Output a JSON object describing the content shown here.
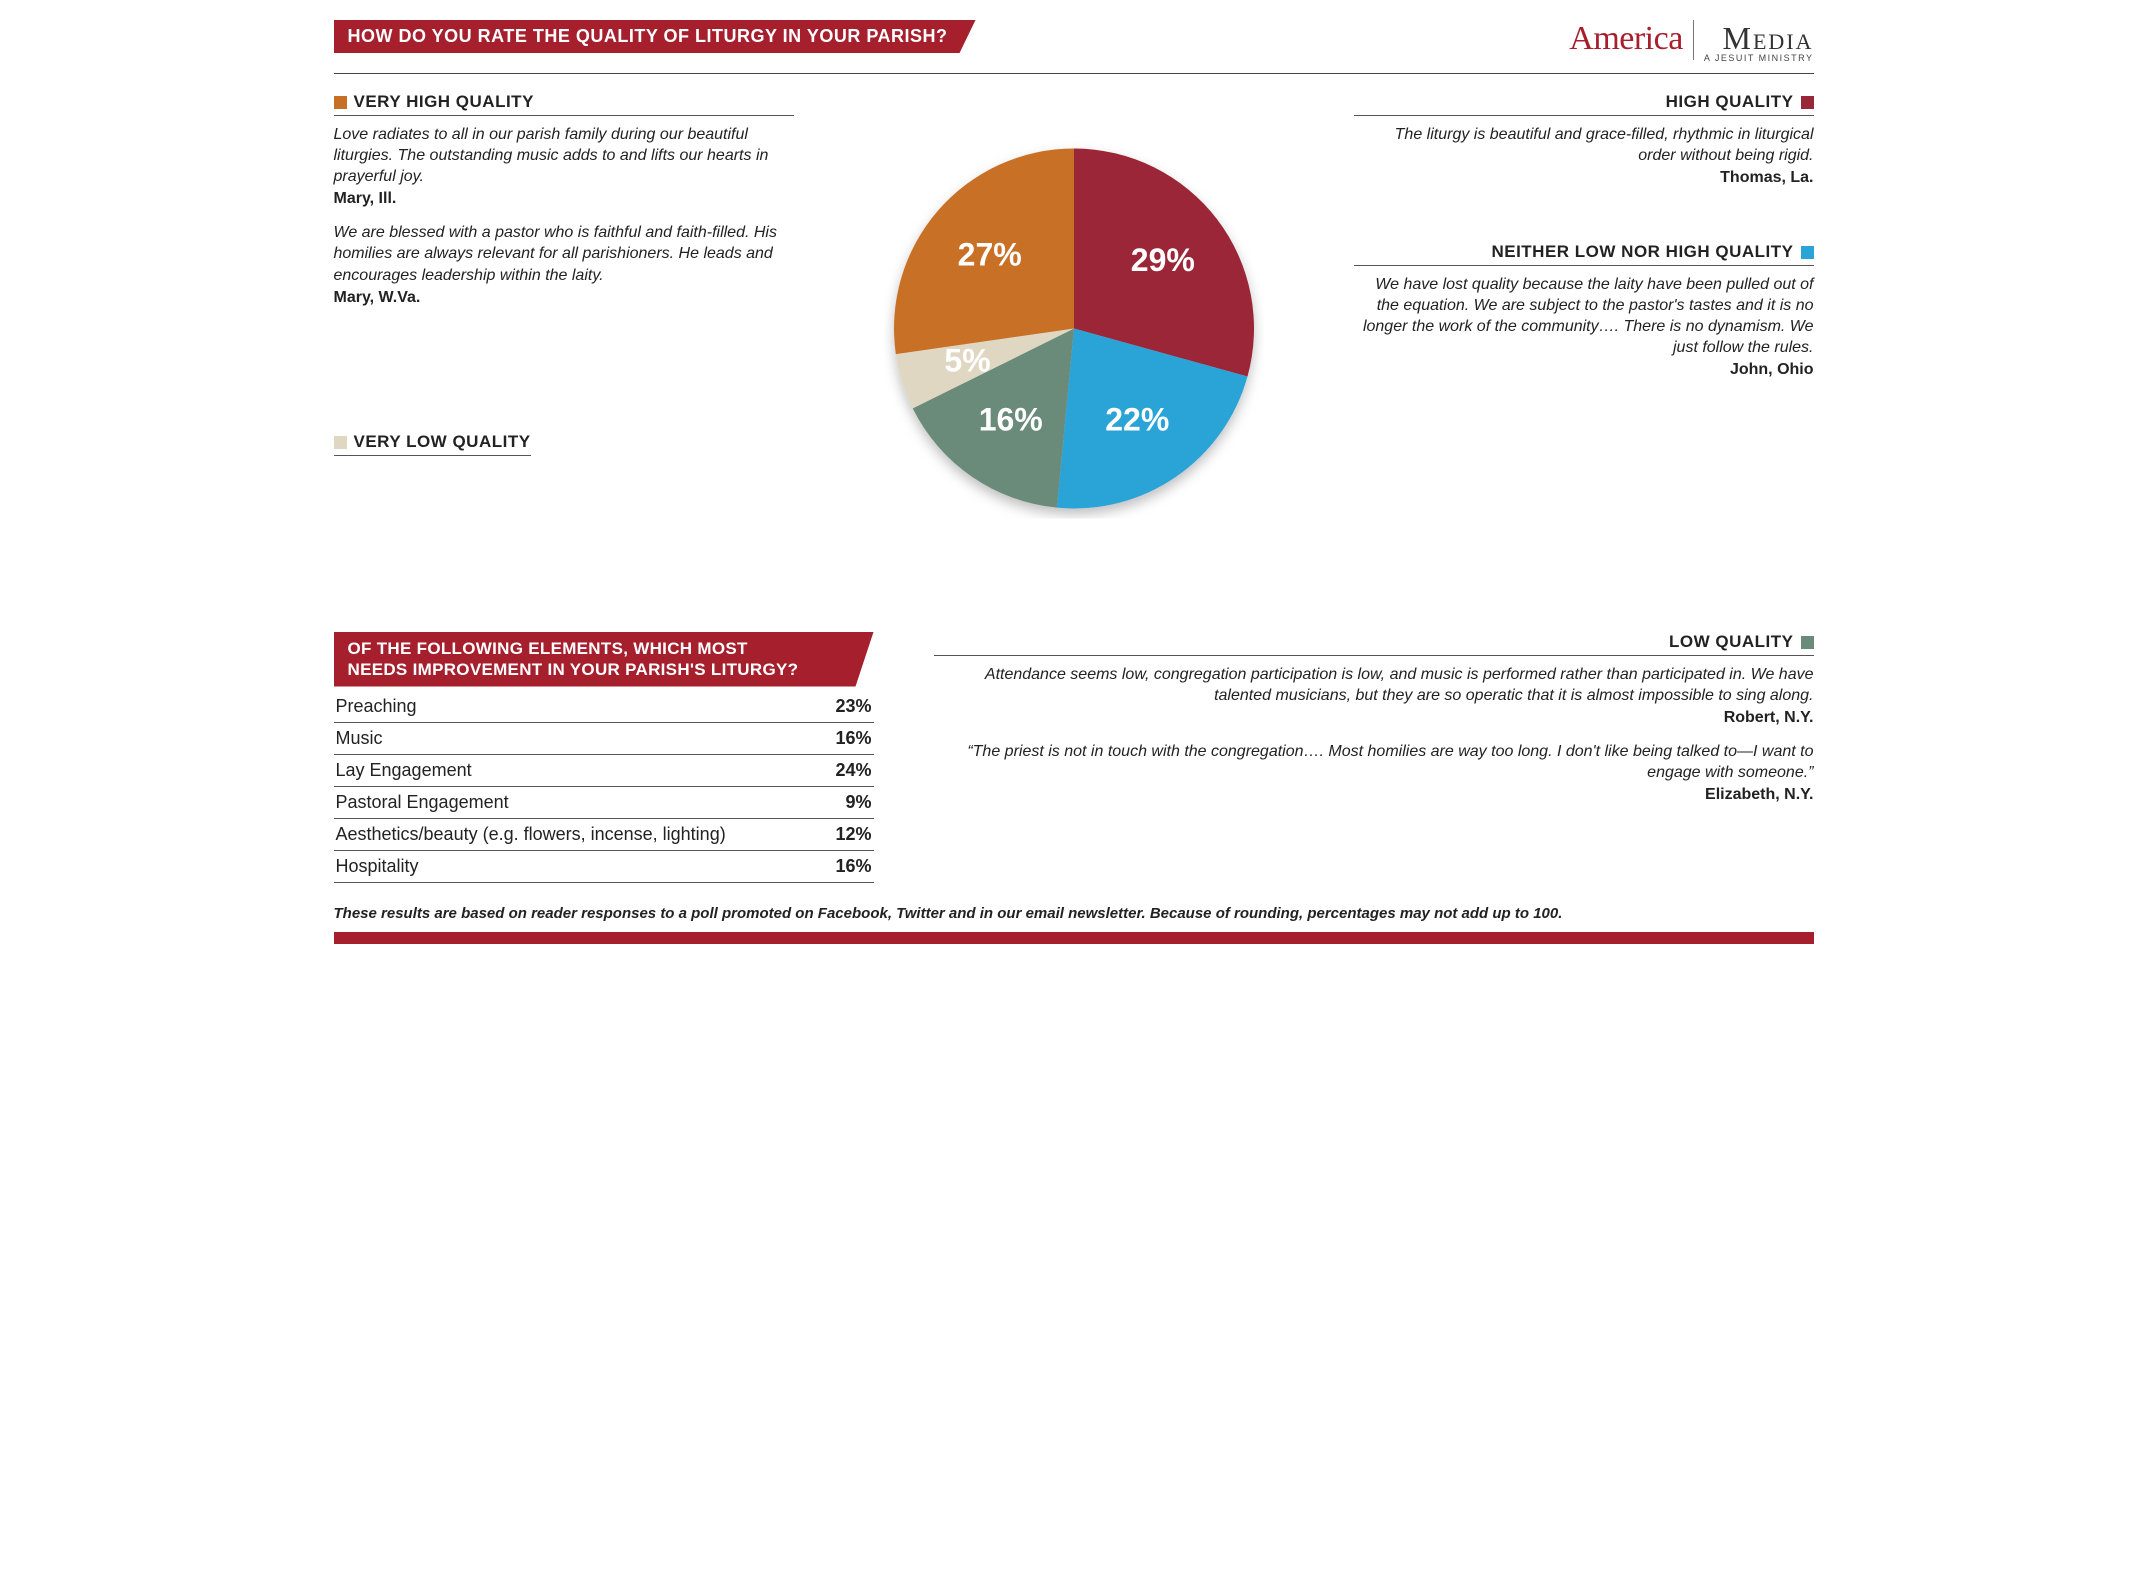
{
  "header": {
    "question": "HOW DO YOU RATE THE QUALITY OF LITURGY IN YOUR PARISH?",
    "logo_america": "America",
    "logo_media": "Media",
    "logo_sub": "A JESUIT MINISTRY"
  },
  "pie": {
    "type": "pie",
    "radius": 180,
    "background_color": "#ffffff",
    "label_color": "#ffffff",
    "label_fontsize": 32,
    "slices": [
      {
        "id": "high",
        "label": "HIGH QUALITY",
        "value": 29,
        "pct_label": "29%",
        "color": "#9a2737"
      },
      {
        "id": "neither",
        "label": "NEITHER LOW NOR HIGH QUALITY",
        "value": 22,
        "pct_label": "22%",
        "color": "#2aa3d6"
      },
      {
        "id": "low",
        "label": "LOW QUALITY",
        "value": 16,
        "pct_label": "16%",
        "color": "#6a8b7a"
      },
      {
        "id": "verylow",
        "label": "VERY LOW QUALITY",
        "value": 5,
        "pct_label": "5%",
        "color": "#e0d7c3"
      },
      {
        "id": "veryhigh",
        "label": "VERY HIGH QUALITY",
        "value": 27,
        "pct_label": "27%",
        "color": "#c77025"
      }
    ]
  },
  "callouts": {
    "veryhigh": {
      "quotes": [
        {
          "text": "Love radiates to all in our parish family during our beautiful liturgies. The outstanding music adds to and lifts our hearts in prayerful joy.",
          "attr": "Mary, Ill."
        },
        {
          "text": "We are blessed with a pastor who is faithful and faith-filled. His homilies are always relevant for all parishioners. He leads and encourages leadership within the laity.",
          "attr": "Mary, W.Va."
        }
      ]
    },
    "high": {
      "quotes": [
        {
          "text": "The liturgy is beautiful and grace-filled, rhythmic in liturgical order without being rigid.",
          "attr": "Thomas, La."
        }
      ]
    },
    "neither": {
      "quotes": [
        {
          "text": "We have lost quality because the laity have been pulled out of the equation. We are subject to the pastor's tastes and it is no longer the work of the community…. There is no dynamism. We just follow the rules.",
          "attr": "John, Ohio"
        }
      ]
    },
    "low": {
      "quotes": [
        {
          "text": "Attendance seems low, congregation participation is low, and music is performed rather than participated in. We have talented musicians, but they are so operatic that it is almost impossible to sing along.",
          "attr": "Robert, N.Y."
        },
        {
          "text": "“The priest is not in touch with the congregation…. Most homilies are way too long. I don't like being talked to—I want to engage with someone.”",
          "attr": "Elizabeth, N.Y."
        }
      ]
    },
    "verylow": {
      "quotes": []
    }
  },
  "table": {
    "title_line1": "OF THE FOLLOWING ELEMENTS, WHICH MOST",
    "title_line2": "NEEDS IMPROVEMENT IN YOUR PARISH'S LITURGY?",
    "rows": [
      {
        "label": "Preaching",
        "value": "23%"
      },
      {
        "label": "Music",
        "value": "16%"
      },
      {
        "label": "Lay Engagement",
        "value": "24%"
      },
      {
        "label": "Pastoral Engagement",
        "value": "9%"
      },
      {
        "label": "Aesthetics/beauty (e.g. flowers, incense, lighting)",
        "value": "12%"
      },
      {
        "label": "Hospitality",
        "value": "16%"
      }
    ]
  },
  "footnote": "These results are based on reader responses to a poll promoted on Facebook, Twitter and in our email newsletter. Because of rounding, percentages may not add up to 100.",
  "colors": {
    "brand_red": "#a61f2d",
    "rule": "#555555"
  }
}
